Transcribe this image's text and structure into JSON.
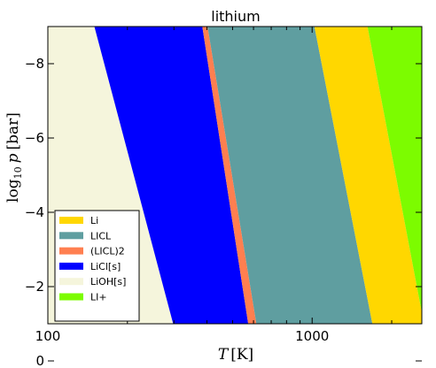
{
  "chart_data": {
    "type": "area",
    "title": "lithium",
    "xlabel_var": "T",
    "xlabel_unit": "[K]",
    "ylabel_prefix": "log",
    "ylabel_sub": "10",
    "ylabel_var": "p",
    "ylabel_unit": "[bar]",
    "x_scale": "log",
    "xlim": [
      100,
      2600
    ],
    "ylim": [
      -1,
      -9
    ],
    "x_ticks": [
      {
        "value": 100,
        "label": "100"
      },
      {
        "value": 1000,
        "label": "1000"
      }
    ],
    "y_ticks": [
      {
        "value": -8,
        "label": "−8"
      },
      {
        "value": -6,
        "label": "−6"
      },
      {
        "value": -4,
        "label": "−4"
      },
      {
        "value": -2,
        "label": "−2"
      },
      {
        "value": 0,
        "label": "0"
      }
    ],
    "legend_position": "bottom-left",
    "series": [
      {
        "name": "Li",
        "color": "#ffd700"
      },
      {
        "name": "LICL",
        "color": "#5f9ea0"
      },
      {
        "name": "(LICL)2",
        "color": "#ff7f50"
      },
      {
        "name": "LiCl[s]",
        "color": "#0000ff"
      },
      {
        "name": "LiOH[s]",
        "color": "#f5f5dc"
      },
      {
        "name": "LI+",
        "color": "#7cfc00"
      }
    ],
    "regions": [
      {
        "series": "LiOH[s]",
        "points": [
          [
            100,
            -9
          ],
          [
            150,
            -9
          ],
          [
            298,
            -1
          ],
          [
            100,
            -1
          ]
        ]
      },
      {
        "series": "LiCl[s]",
        "points": [
          [
            150,
            -9
          ],
          [
            384,
            -9
          ],
          [
            573,
            -1
          ],
          [
            298,
            -1
          ]
        ]
      },
      {
        "series": "(LICL)2",
        "points": [
          [
            384,
            -9
          ],
          [
            402,
            -9
          ],
          [
            615,
            -1
          ],
          [
            573,
            -1
          ]
        ]
      },
      {
        "series": "LICL",
        "points": [
          [
            402,
            -9
          ],
          [
            1020,
            -9
          ],
          [
            1690,
            -1
          ],
          [
            615,
            -1
          ]
        ]
      },
      {
        "series": "Li",
        "points": [
          [
            1020,
            -9
          ],
          [
            1620,
            -9
          ],
          [
            2600,
            -1.3
          ],
          [
            2600,
            -1
          ],
          [
            1690,
            -1
          ]
        ]
      },
      {
        "series": "LI+",
        "points": [
          [
            1620,
            -9
          ],
          [
            2600,
            -9
          ],
          [
            2600,
            -1.3
          ]
        ]
      }
    ]
  }
}
